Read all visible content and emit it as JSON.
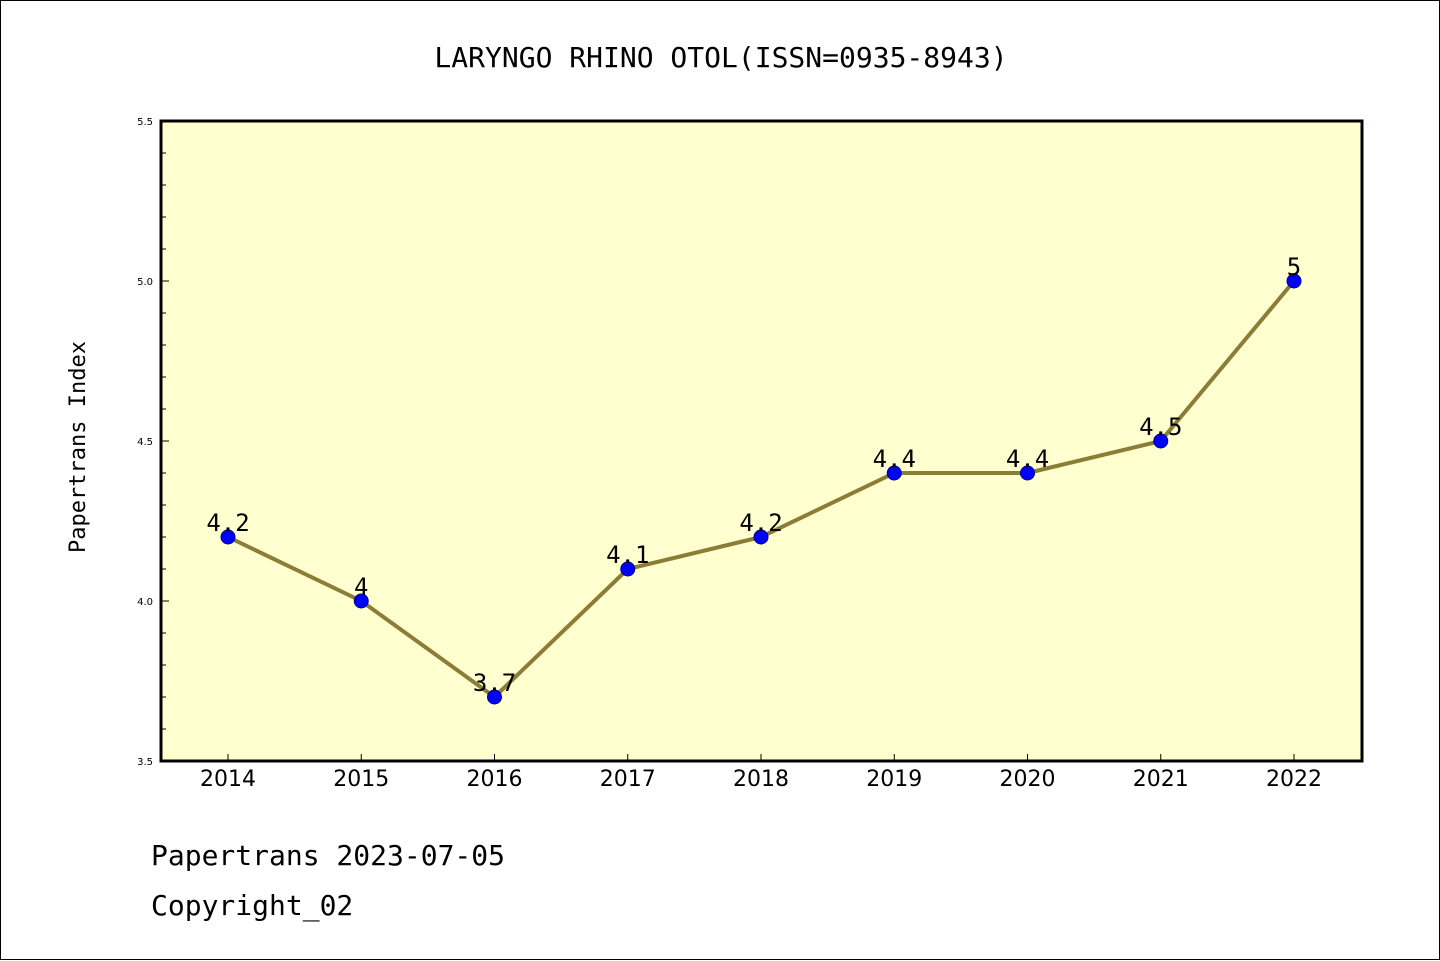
{
  "chart_data": {
    "type": "line",
    "title": "LARYNGO RHINO OTOL(ISSN=0935-8943)",
    "xlabel": "",
    "ylabel": "Papertrans Index",
    "categories": [
      "2014",
      "2015",
      "2016",
      "2017",
      "2018",
      "2019",
      "2020",
      "2021",
      "2022"
    ],
    "values": [
      4.2,
      4.0,
      3.7,
      4.1,
      4.2,
      4.4,
      4.4,
      4.5,
      5.0
    ],
    "data_labels": [
      "4.2",
      "4",
      "3.7",
      "4.1",
      "4.2",
      "4.4",
      "4.4",
      "4.5",
      "5"
    ],
    "ylim": [
      3.5,
      5.5
    ],
    "yticks": [
      "3.5",
      "4.0",
      "4.5",
      "5.0",
      "5.5"
    ],
    "grid": false,
    "colors": {
      "plot_background": "#ffffd0",
      "line": "#8b7d35",
      "marker": "#0000ff",
      "marker_edge": "#00008b"
    }
  },
  "footer": {
    "line1": "Papertrans 2023-07-05",
    "line2": "Copyright_02"
  }
}
